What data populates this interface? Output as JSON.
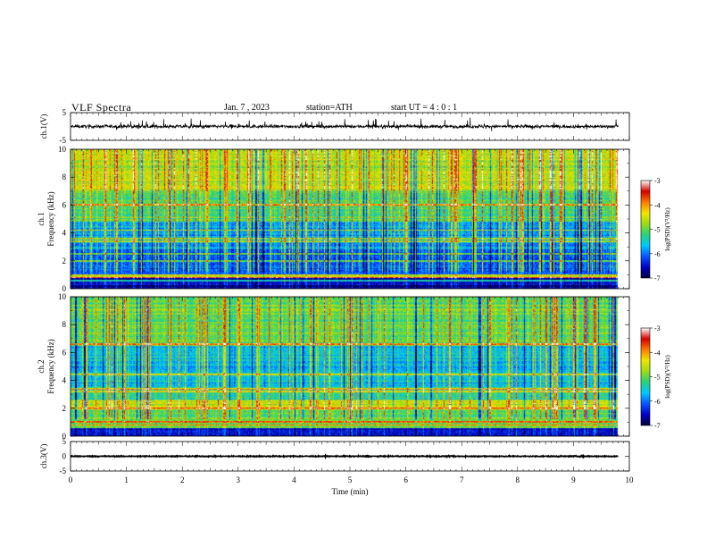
{
  "header": {
    "title": "VLF Spectra",
    "date": "Jan. 7 , 2023",
    "station": "station=ATH",
    "start_ut": "start UT = 4 : 0 : 1"
  },
  "colors": {
    "spectrogram_map": [
      "#00003a",
      "#0000c8",
      "#0a55ff",
      "#00c8ff",
      "#28d27a",
      "#9cdc14",
      "#f0e600",
      "#ff7a00",
      "#d20000",
      "#ffffff"
    ],
    "trace": "#000000"
  },
  "chart_data": [
    {
      "type": "line",
      "name": "ch1-waveform",
      "ylabel": "ch.1(V)",
      "ylim": [
        -5,
        5
      ],
      "yticks": [
        "5",
        "-5"
      ],
      "xlim": [
        0,
        10
      ],
      "baseline": 0,
      "noise_amplitude": 0.6,
      "data_end_min": 9.8
    },
    {
      "type": "heatmap",
      "name": "ch1-spectrogram",
      "ylabel_channel": "ch.1",
      "ylabel": "Frequency (kHz)",
      "ylim": [
        0,
        10
      ],
      "yticks": [
        "0",
        "2",
        "4",
        "6",
        "8",
        "10"
      ],
      "xlim": [
        0,
        10
      ],
      "data_end_min": 9.8,
      "colorbar": {
        "label": "log(PSD)(V²/Hz)",
        "ticks": [
          "-3",
          "-4",
          "-5",
          "-6",
          "-7"
        ],
        "range": [
          -7,
          -3
        ]
      },
      "bands": [
        {
          "range_khz": [
            0,
            0.8
          ],
          "mean": -6.6
        },
        {
          "range_khz": [
            0.8,
            1.0
          ],
          "mean": -4.4
        },
        {
          "range_khz": [
            1.0,
            2.8
          ],
          "mean": -6.1
        },
        {
          "range_khz": [
            2.8,
            4.8
          ],
          "mean": -5.8
        },
        {
          "range_khz": [
            4.8,
            7.0
          ],
          "mean": -5.1
        },
        {
          "range_khz": [
            7.0,
            10.0
          ],
          "mean": -4.6
        }
      ],
      "tone_lines_khz": [
        0.6,
        0.8,
        2.0,
        2.5,
        3.4,
        3.6,
        4.2,
        6.0
      ],
      "sferic_density": 0.55
    },
    {
      "type": "heatmap",
      "name": "ch2-spectrogram",
      "ylabel_channel": "ch.2",
      "ylabel": "Frequency (kHz)",
      "ylim": [
        0,
        10
      ],
      "yticks": [
        "0",
        "2",
        "4",
        "6",
        "8",
        "10"
      ],
      "xlim": [
        0,
        10
      ],
      "data_end_min": 9.8,
      "colorbar": {
        "label": "log(PSD)(V²/Hz)",
        "ticks": [
          "-3",
          "-4",
          "-5",
          "-6",
          "-7"
        ],
        "range": [
          -7,
          -3
        ]
      },
      "bands": [
        {
          "range_khz": [
            0,
            0.6
          ],
          "mean": -6.5
        },
        {
          "range_khz": [
            0.6,
            2.0
          ],
          "mean": -5.0
        },
        {
          "range_khz": [
            2.0,
            2.6
          ],
          "mean": -4.6
        },
        {
          "range_khz": [
            2.6,
            3.4
          ],
          "mean": -5.3
        },
        {
          "range_khz": [
            3.4,
            6.5
          ],
          "mean": -5.6
        },
        {
          "range_khz": [
            6.5,
            10.0
          ],
          "mean": -5.0
        }
      ],
      "tone_lines_khz": [
        0.8,
        1.0,
        2.0,
        3.2,
        3.4,
        4.4,
        6.6
      ],
      "sferic_density": 0.45
    },
    {
      "type": "line",
      "name": "ch3-waveform",
      "ylabel": "ch.3(V)",
      "ylim": [
        -5,
        5
      ],
      "yticks": [
        "5",
        "0",
        "-5"
      ],
      "xlim": [
        0,
        10
      ],
      "xlabel": "Time (min)",
      "xticks": [
        "0",
        "1",
        "2",
        "3",
        "4",
        "5",
        "6",
        "7",
        "8",
        "9",
        "10"
      ],
      "baseline": 0,
      "noise_amplitude": 0.15,
      "data_end_min": 9.8
    }
  ]
}
